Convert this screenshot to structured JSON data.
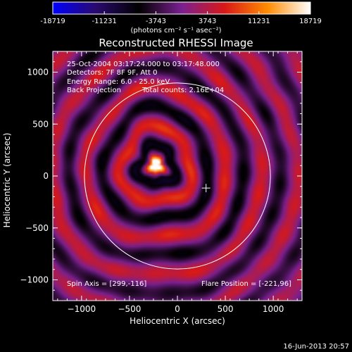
{
  "figure": {
    "title": "Reconstructed RHESSI Image",
    "colorbar": {
      "ticks": [
        "-18719",
        "-11231",
        "-3743",
        "3743",
        "11231",
        "18719"
      ],
      "unit_label": "(photons cm⁻² s⁻¹ asec⁻²)",
      "colors": [
        "#0000ff",
        "#2a0a6e",
        "#000000",
        "#7a2090",
        "#d81818",
        "#ff8c00",
        "#ffffff"
      ]
    },
    "annotations": {
      "time_range": "25-Oct-2004 03:17:24.000 to 03:17:48.000",
      "detectors": "Detectors: 7F 8F 9F, Att 0",
      "energy_range": "Energy Range: 6.0 - 25.0 keV",
      "back_projection": "Back Projection",
      "total_counts": "Total counts: 2.16E+04",
      "spin_axis": "Spin Axis = [299,-116]",
      "flare_position": "Flare Position = [-221,96]"
    },
    "timestamp": "16-Jun-2013 20:57"
  },
  "chart_data": {
    "type": "heatmap",
    "title": "Reconstructed RHESSI Image",
    "xlabel": "Heliocentric X (arcsec)",
    "ylabel": "Heliocentric Y (arcsec)",
    "xlim": [
      -1300,
      1300
    ],
    "ylim": [
      -1200,
      1200
    ],
    "xticks": [
      -1000,
      -500,
      0,
      500,
      1000
    ],
    "yticks": [
      -1000,
      -500,
      0,
      500,
      1000
    ],
    "color_range": [
      -18719,
      18719
    ],
    "solar_limb": {
      "center": [
        0,
        0
      ],
      "radius_arcsec": 970
    },
    "spin_axis": [
      299,
      -116
    ],
    "flare_position": [
      -221,
      96
    ],
    "peak_source": {
      "x": -225,
      "y": 105,
      "approx_value": 18719
    }
  }
}
